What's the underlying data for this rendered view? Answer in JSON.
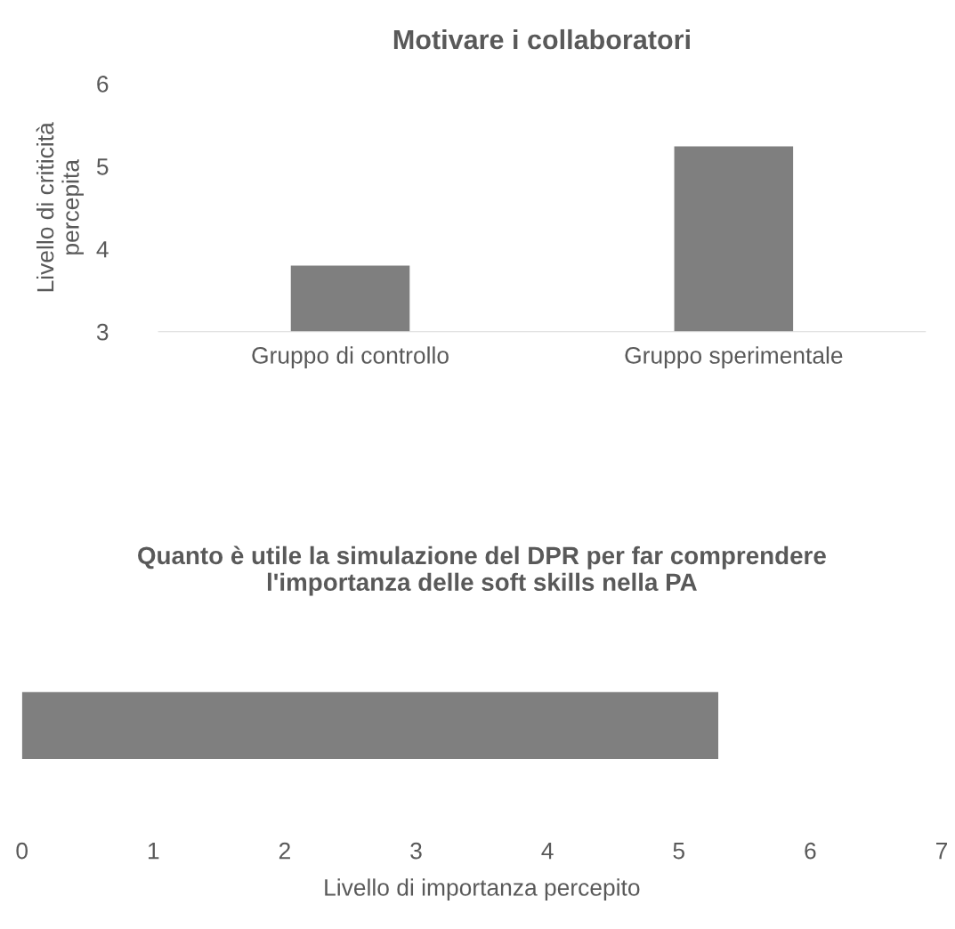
{
  "chart_data": [
    {
      "type": "bar",
      "title": "Motivare i collaboratori",
      "ylabel": "Livello di criticità percepita",
      "categories": [
        "Gruppo di controllo",
        "Gruppo sperimentale"
      ],
      "values": [
        3.8,
        5.24
      ],
      "color": "#7f7f7f",
      "ylim": [
        3,
        6
      ],
      "yticks": [
        3,
        4,
        5,
        6
      ],
      "grid": false,
      "legend": false
    },
    {
      "type": "bar",
      "orientation": "horizontal",
      "title": "Quanto è utile la simulazione del DPR per far comprendere l'importanza delle soft skills nella PA",
      "xlabel": "Livello di importanza percepito",
      "categories": [
        null
      ],
      "values": [
        5.3
      ],
      "color": "#7f7f7f",
      "xlim": [
        0,
        7
      ],
      "xticks": [
        0,
        1,
        2,
        3,
        4,
        5,
        6,
        7
      ],
      "grid": false,
      "legend": false
    }
  ]
}
